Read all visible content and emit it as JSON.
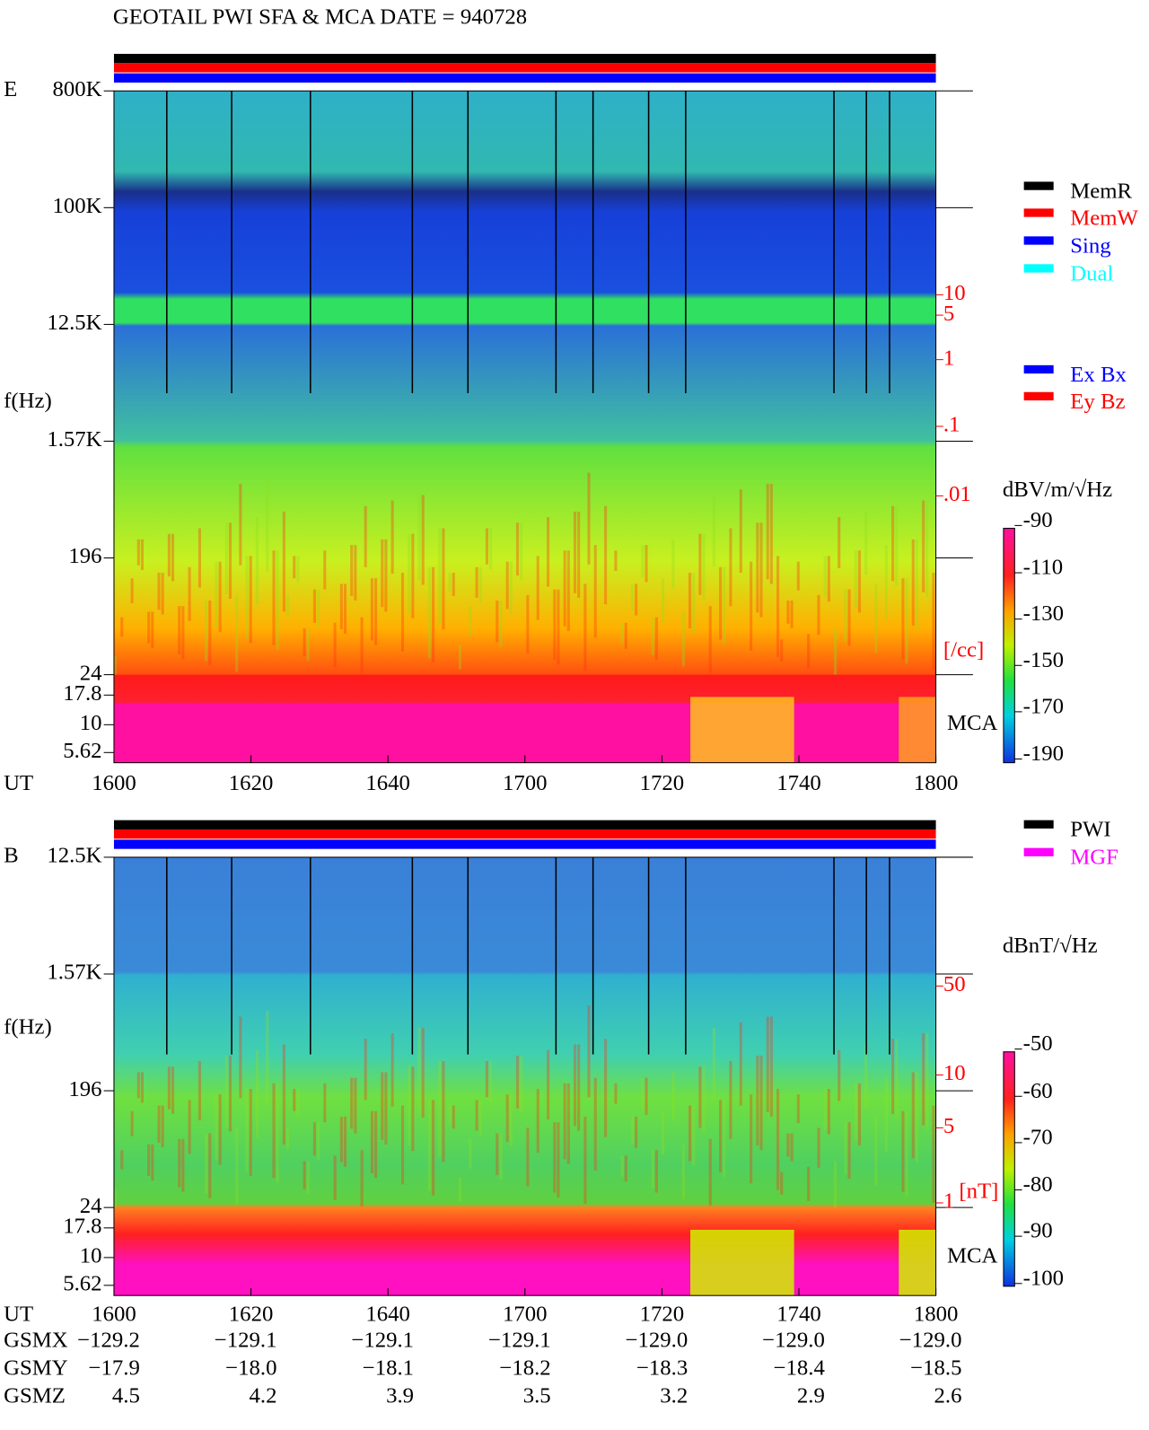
{
  "title": "GEOTAIL  PWI SFA & MCA   DATE = 940728",
  "panels": [
    {
      "label": "E",
      "ylabel": "f(Hz)",
      "xlabel": "UT",
      "yticks": [
        "800K",
        "100K",
        "12.5K",
        "1.57K",
        "196",
        "24",
        "17.8",
        "10",
        "5.62"
      ],
      "xticks": [
        "1600",
        "1620",
        "1640",
        "1700",
        "1720",
        "1740",
        "1800"
      ],
      "right_scale": [
        "10",
        "5",
        "1",
        ".1",
        ".01",
        "[/cc]"
      ],
      "mca": "MCA",
      "colorbar": {
        "title": "dBV/m/√Hz",
        "ticks": [
          "-90",
          "-110",
          "-130",
          "-150",
          "-170",
          "-190"
        ]
      }
    },
    {
      "label": "B",
      "ylabel": "f(Hz)",
      "xlabel": "UT",
      "yticks": [
        "12.5K",
        "1.57K",
        "196",
        "24",
        "17.8",
        "10",
        "5.62"
      ],
      "xticks": [
        "1600",
        "1620",
        "1640",
        "1700",
        "1720",
        "1740",
        "1800"
      ],
      "right_scale": [
        "50",
        "10",
        "5",
        "1",
        "[nT]"
      ],
      "mca": "MCA",
      "colorbar": {
        "title": "dBnT/√Hz",
        "ticks": [
          "-50",
          "-60",
          "-70",
          "-80",
          "-90",
          "-100"
        ]
      }
    }
  ],
  "legend_mode": [
    {
      "label": "MemR",
      "color": "#000000"
    },
    {
      "label": "MemW",
      "color": "#ff0000"
    },
    {
      "label": "Sing",
      "color": "#0000ff"
    },
    {
      "label": "Dual",
      "color": "#00ffff"
    }
  ],
  "legend_antenna": [
    {
      "label": "Ex Bx",
      "color": "#0000ff"
    },
    {
      "label": "Ey Bz",
      "color": "#ff0000"
    }
  ],
  "legend_source": [
    {
      "label": "PWI",
      "color": "#000000"
    },
    {
      "label": "MGF",
      "color": "#ff00ff"
    }
  ],
  "orbit": [
    {
      "label": "GSMX",
      "values": [
        "−129.2",
        "−129.1",
        "−129.1",
        "−129.1",
        "−129.0",
        "−129.0",
        "−129.0"
      ]
    },
    {
      "label": "GSMY",
      "values": [
        "−17.9",
        "−18.0",
        "−18.1",
        "−18.2",
        "−18.3",
        "−18.4",
        "−18.5"
      ]
    },
    {
      "label": "GSMZ",
      "values": [
        "4.5",
        "4.2",
        "3.9",
        "3.5",
        "3.2",
        "2.9",
        "2.6"
      ]
    }
  ]
}
